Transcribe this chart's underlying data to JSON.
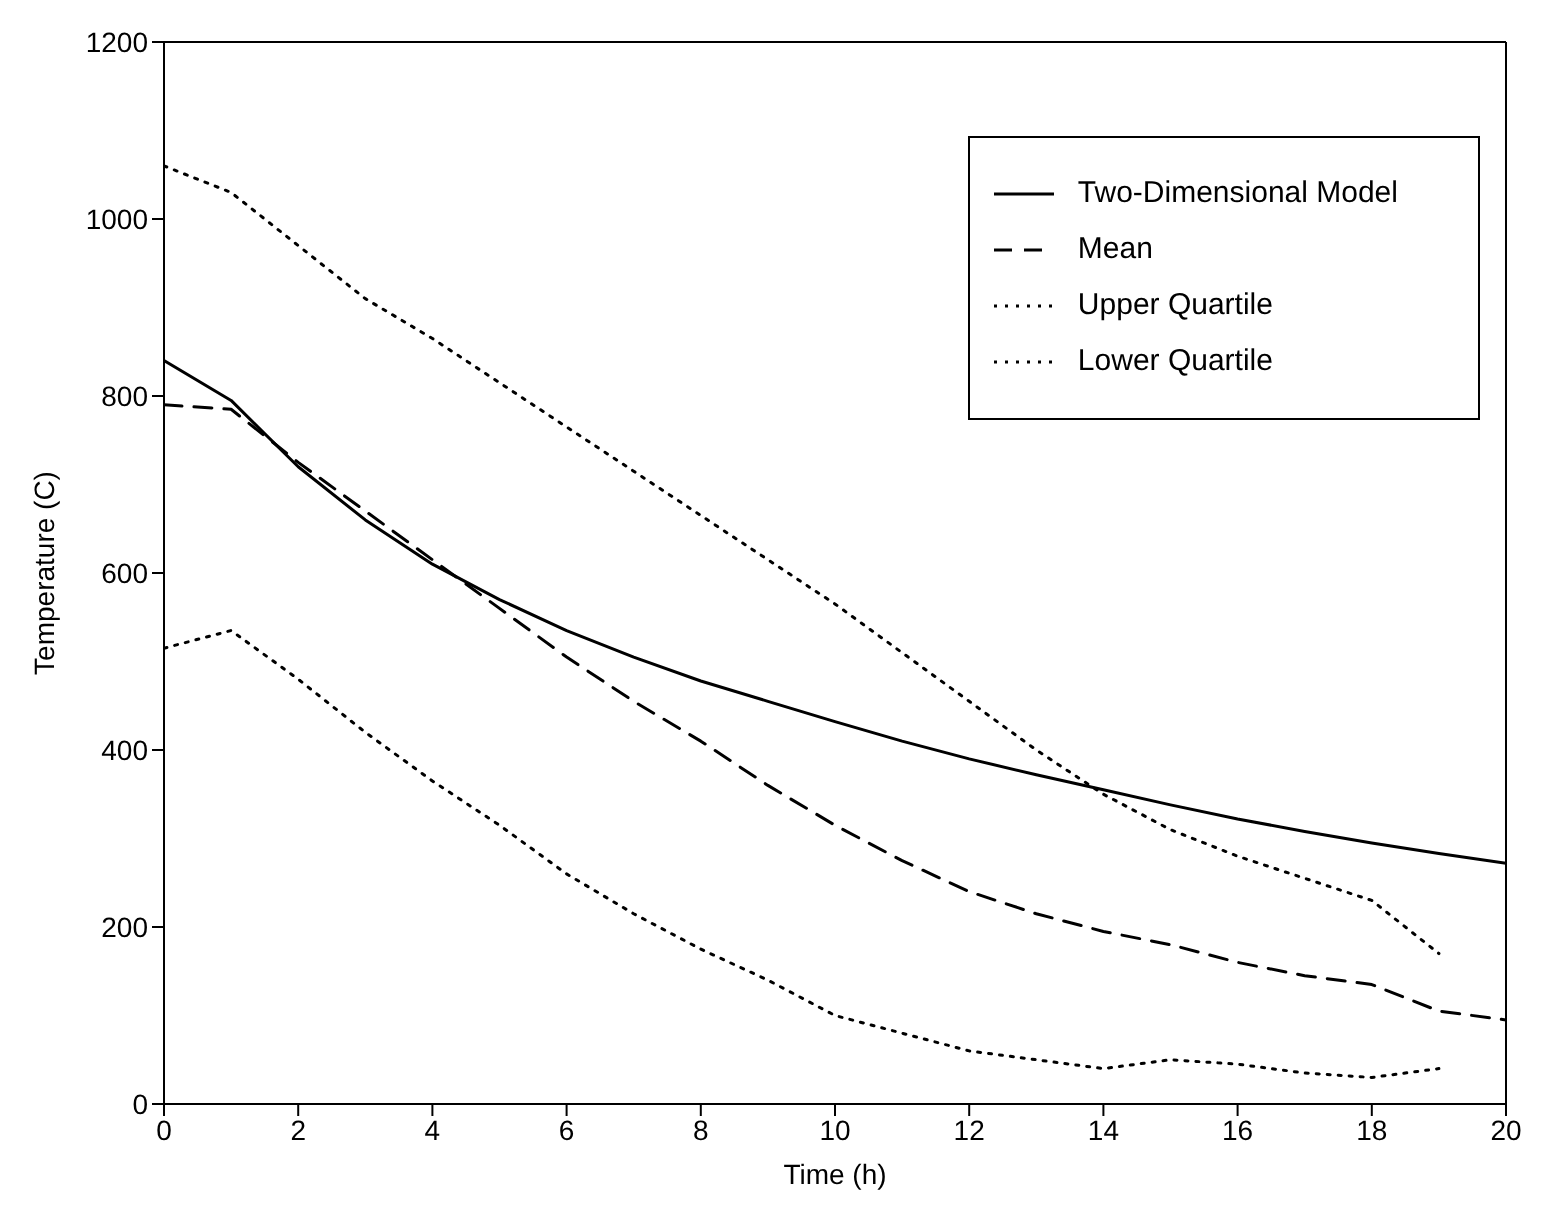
{
  "chart_data": {
    "type": "line",
    "xlabel": "Time (h)",
    "ylabel": "Temperature (C)",
    "x": [
      0,
      1,
      2,
      3,
      4,
      5,
      6,
      7,
      8,
      9,
      10,
      11,
      12,
      13,
      14,
      15,
      16,
      17,
      18,
      19,
      20
    ],
    "xlim": [
      0,
      20
    ],
    "xticks": [
      0,
      2,
      4,
      6,
      8,
      10,
      12,
      14,
      16,
      18,
      20
    ],
    "ylim": [
      0,
      1200
    ],
    "yticks": [
      0,
      200,
      400,
      600,
      800,
      1000,
      1200
    ],
    "grid": false,
    "legend": "top right",
    "marker": "none",
    "series": [
      {
        "name": "Two-Dimensional Model",
        "color": "#000000",
        "line_style": "solid",
        "values": [
          840,
          795,
          720,
          660,
          610,
          570,
          535,
          505,
          478,
          455,
          432,
          410,
          390,
          372,
          355,
          338,
          322,
          308,
          295,
          283,
          272
        ]
      },
      {
        "name": "Mean",
        "color": "#000000",
        "line_style": "dashed",
        "values": [
          790,
          785,
          725,
          670,
          615,
          560,
          505,
          455,
          410,
          360,
          315,
          275,
          240,
          215,
          195,
          180,
          160,
          145,
          135,
          105,
          95
        ]
      },
      {
        "name": "Upper Quartile",
        "color": "#000000",
        "line_style": "dotted",
        "values": [
          1060,
          1030,
          970,
          910,
          865,
          815,
          765,
          715,
          665,
          615,
          565,
          510,
          455,
          400,
          350,
          310,
          280,
          255,
          230,
          170,
          null
        ]
      },
      {
        "name": "Lower Quartile",
        "color": "#000000",
        "line_style": "dotted",
        "values": [
          515,
          535,
          480,
          420,
          365,
          315,
          260,
          215,
          175,
          140,
          100,
          80,
          60,
          50,
          40,
          50,
          45,
          35,
          30,
          40,
          null
        ]
      }
    ]
  }
}
